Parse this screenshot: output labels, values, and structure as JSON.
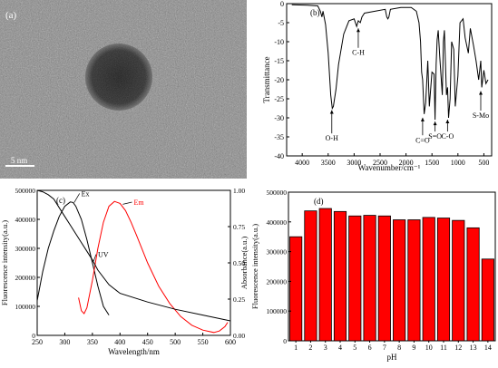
{
  "panel_a": {
    "label": "(a)",
    "scale_label": "5 nm",
    "colors": {
      "background": "#8c8c8c",
      "particle": "#2b2b2b"
    }
  },
  "chart_data": [
    {
      "id": "b",
      "type": "line",
      "panel_label": "(b)",
      "xlabel": "Wavenumber/cm⁻¹",
      "ylabel": "Transmittance",
      "xlim": [
        4300,
        350
      ],
      "x_reversed": true,
      "ylim": [
        -40,
        0
      ],
      "x_ticks": [
        4000,
        3500,
        3000,
        2500,
        2000,
        1500,
        1000,
        500
      ],
      "y_ticks": [
        0,
        -5,
        -10,
        -15,
        -20,
        -25,
        -30,
        -35,
        -40
      ],
      "series": [
        {
          "color": "#000000",
          "x": [
            4200,
            3900,
            3700,
            3650,
            3620,
            3600,
            3550,
            3500,
            3450,
            3420,
            3400,
            3350,
            3300,
            3200,
            3100,
            3000,
            2950,
            2920,
            2880,
            2850,
            2800,
            2600,
            2400,
            2370,
            2350,
            2330,
            2300,
            2100,
            1900,
            1800,
            1750,
            1720,
            1700,
            1680,
            1650,
            1620,
            1580,
            1550,
            1500,
            1460,
            1440,
            1420,
            1400,
            1380,
            1350,
            1300,
            1280,
            1260,
            1220,
            1200,
            1180,
            1150,
            1120,
            1080,
            1050,
            1020,
            1000,
            960,
            900,
            860,
            800,
            760,
            700,
            650,
            600,
            560,
            540,
            500,
            460,
            420
          ],
          "y": [
            -0.3,
            -0.4,
            -0.6,
            -2.0,
            -3.5,
            -2.0,
            -5.5,
            -13.0,
            -24.0,
            -27.5,
            -27.0,
            -22.5,
            -16.0,
            -8.0,
            -4.5,
            -4.0,
            -6.0,
            -4.5,
            -5.0,
            -3.5,
            -2.5,
            -2.0,
            -1.5,
            -3.5,
            -4.0,
            -3.5,
            -1.5,
            -1.0,
            -1.0,
            -2.0,
            -5.0,
            -10.0,
            -18.0,
            -20.0,
            -29.0,
            -26.0,
            -15.0,
            -27.0,
            -18.0,
            -18.5,
            -30.5,
            -16.0,
            -9.5,
            -7.0,
            -14.0,
            -24.0,
            -10.0,
            -7.0,
            -24.0,
            -22.0,
            -30.0,
            -25.0,
            -10.0,
            -12.0,
            -27.0,
            -22.0,
            -19.0,
            -5.0,
            -4.0,
            -9.0,
            -13.0,
            -6.5,
            -11.0,
            -15.0,
            -20.0,
            -15.0,
            -22.0,
            -17.5,
            -21.0,
            -20.0
          ]
        }
      ],
      "annotations": [
        {
          "text": "O-H",
          "x": 3430,
          "y": -27.5,
          "label_y": -36
        },
        {
          "text": "C-H",
          "x": 2920,
          "y": -6.0,
          "label_y": -13.5
        },
        {
          "text": "C=O",
          "x": 1680,
          "y": -29.5,
          "label_y": -36.5
        },
        {
          "text": "S=O",
          "x": 1440,
          "y": -30.5,
          "label_y": -35.5
        },
        {
          "text": "C-O",
          "x": 1200,
          "y": -30.0,
          "label_y": -35.5
        },
        {
          "text": "S-Mo",
          "x": 560,
          "y": -22.5,
          "label_y": -30.0
        }
      ]
    },
    {
      "id": "c",
      "type": "line",
      "panel_label": "(c)",
      "xlabel": "Wavelength/nm",
      "ylabel": "Fluorescence intensity(a.u.)",
      "ylabel_right": "Absorbance(a.u.)",
      "xlim": [
        250,
        600
      ],
      "ylim": [
        0,
        500000
      ],
      "ylim_right": [
        0,
        1.0
      ],
      "x_ticks": [
        250,
        300,
        350,
        400,
        450,
        500,
        550,
        600
      ],
      "y_ticks": [
        0,
        100000,
        200000,
        300000,
        400000,
        500000
      ],
      "y_ticks_right": [
        0.0,
        0.25,
        0.5,
        0.75,
        1.0
      ],
      "series": [
        {
          "name": "Ex",
          "color": "#000000",
          "axis": "left",
          "x": [
            250,
            260,
            270,
            280,
            290,
            300,
            310,
            315,
            320,
            330,
            340,
            350,
            360,
            370,
            380
          ],
          "y": [
            120000,
            220000,
            300000,
            360000,
            410000,
            445000,
            460000,
            458000,
            445000,
            400000,
            330000,
            250000,
            170000,
            100000,
            70000
          ]
        },
        {
          "name": "Em",
          "color": "#ff0000",
          "axis": "left",
          "x": [
            325,
            330,
            335,
            340,
            350,
            360,
            370,
            380,
            390,
            400,
            410,
            420,
            430,
            450,
            470,
            490,
            510,
            530,
            550,
            570,
            580,
            590,
            595
          ],
          "y": [
            130000,
            85000,
            75000,
            95000,
            190000,
            300000,
            390000,
            445000,
            462000,
            455000,
            430000,
            390000,
            345000,
            250000,
            170000,
            110000,
            65000,
            35000,
            18000,
            10000,
            15000,
            30000,
            45000
          ]
        },
        {
          "name": "UV",
          "color": "#000000",
          "axis": "right",
          "x": [
            250,
            260,
            270,
            280,
            290,
            300,
            310,
            320,
            330,
            340,
            350,
            360,
            380,
            400,
            450,
            500,
            550,
            600
          ],
          "y": [
            1.0,
            0.99,
            0.97,
            0.94,
            0.88,
            0.82,
            0.76,
            0.7,
            0.64,
            0.58,
            0.52,
            0.45,
            0.35,
            0.29,
            0.23,
            0.18,
            0.14,
            0.1
          ]
        }
      ],
      "annotations": [
        {
          "text": "Ex",
          "series": "Ex",
          "x": 317,
          "y": 458000,
          "label_x": 330,
          "label_y": 480000
        },
        {
          "text": "Em",
          "series": "Em",
          "x": 405,
          "y": 452000,
          "label_x": 425,
          "label_y": 450000
        },
        {
          "text": "UV",
          "series": "UV",
          "x": 352,
          "y": 255000,
          "label_x": 360,
          "label_y": 270000
        }
      ]
    },
    {
      "id": "d",
      "type": "bar",
      "panel_label": "(d)",
      "xlabel": "pH",
      "ylabel": "Fluorescence intensity(a.u.)",
      "categories": [
        "1",
        "2",
        "3",
        "4",
        "5",
        "6",
        "7",
        "8",
        "9",
        "10",
        "11",
        "12",
        "13",
        "14"
      ],
      "values": [
        350000,
        437000,
        445000,
        435000,
        420000,
        422000,
        420000,
        407000,
        407000,
        415000,
        413000,
        405000,
        380000,
        275000
      ],
      "ylim": [
        0,
        500000
      ],
      "y_ticks": [
        0,
        100000,
        200000,
        300000,
        400000,
        500000
      ],
      "bar_color": "#ff0000"
    }
  ]
}
